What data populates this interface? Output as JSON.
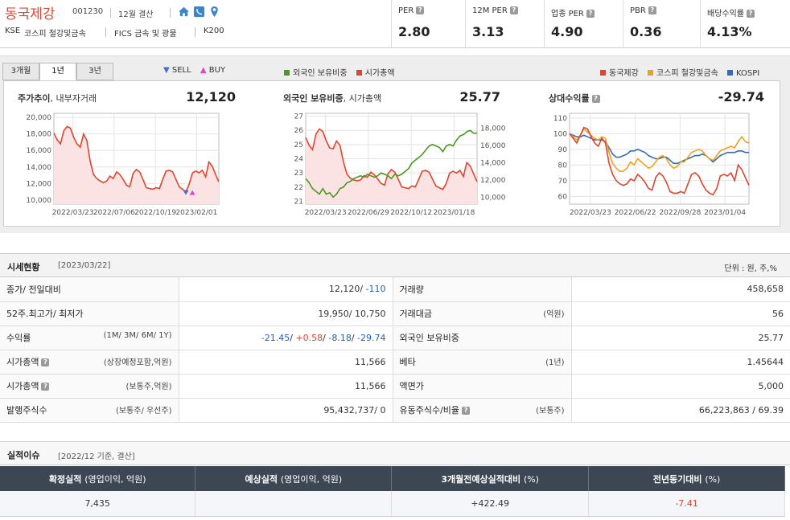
{
  "header": {
    "company_name": "동국제강",
    "code": "001230",
    "settlement": "12월 결산",
    "market": "KSE",
    "sector1": "코스피 철강및금속",
    "sector2": "FICS 금속 및 광물",
    "index": "K200",
    "icons": [
      "home-icon",
      "phone-icon",
      "location-icon"
    ]
  },
  "metrics": [
    {
      "label": "PER",
      "value": "2.80"
    },
    {
      "label": "12M PER",
      "value": "3.13"
    },
    {
      "label": "업종 PER",
      "value": "4.90"
    },
    {
      "label": "PBR",
      "value": "0.36"
    },
    {
      "label": "배당수익률",
      "value": "4.13%"
    }
  ],
  "tabs": [
    "3개월",
    "1년",
    "3년"
  ],
  "active_tab": "1년",
  "legends": {
    "trade": {
      "sell": "SELL",
      "buy": "BUY"
    },
    "foreign": [
      {
        "name": "외국인 보유비중",
        "color": "#4a9a1e"
      },
      {
        "name": "시가총액",
        "color": "#e0452e"
      }
    ],
    "relative": [
      {
        "name": "동국제강",
        "color": "#e0452e"
      },
      {
        "name": "코스피 철강및금속",
        "color": "#f0a11c"
      },
      {
        "name": "KOSPI",
        "color": "#2f6fb3"
      }
    ]
  },
  "colors": {
    "price": "#e0452e",
    "price_fill": "#fbe3e3",
    "foreign": "#4a9a1e",
    "steel": "#f0a11c",
    "kospi": "#2f6fb3",
    "sell": "#3f6fd0",
    "buy": "#d24fc2"
  },
  "chart_data": [
    {
      "type": "area",
      "title": "주가추이",
      "subtitle": "내부자거래",
      "headline": "12,120",
      "x_ticks": [
        "2022/03/23",
        "2022/07/06",
        "2022/10/19",
        "2023/02/01"
      ],
      "y_ticks": [
        "20,000",
        "18,000",
        "16,000",
        "14,000",
        "12,000",
        "10,000"
      ],
      "ylim": [
        9500,
        20500
      ],
      "series": [
        {
          "name": "주가",
          "values": [
            18100,
            17300,
            16800,
            18400,
            18900,
            18700,
            17600,
            16800,
            16400,
            18000,
            17200,
            14700,
            13100,
            12600,
            12300,
            12100,
            12300,
            12900,
            12600,
            13400,
            13100,
            12500,
            11800,
            11600,
            13200,
            13700,
            13400,
            12500,
            11500,
            11400,
            11300,
            11500,
            11400,
            12500,
            13500,
            13600,
            13400,
            12500,
            11600,
            11300,
            11000,
            11900,
            13300,
            13500,
            13300,
            13600,
            12800,
            14600,
            14100,
            13100,
            12200
          ]
        }
      ],
      "trades": [
        {
          "kind": "SELL",
          "date_index": 40,
          "price": 10900
        },
        {
          "kind": "BUY",
          "date_index": 42,
          "price": 10900
        }
      ],
      "grid": true
    },
    {
      "type": "line",
      "title": "외국인 보유비중",
      "subtitle": "시가총액",
      "headline": "25.77",
      "x_ticks": [
        "2022/03/23",
        "2022/06/29",
        "2022/10/12",
        "2023/01/18"
      ],
      "y_left_ticks": [
        "27",
        "26",
        "25",
        "24",
        "23",
        "22",
        "21"
      ],
      "y_right_ticks": [
        "18,000",
        "16,000",
        "14,000",
        "12,000",
        "10,000"
      ],
      "ylim_left": [
        20.8,
        27.2
      ],
      "ylim_right": [
        9200,
        19700
      ],
      "series": [
        {
          "name": "외국인 보유비중",
          "axis": "left",
          "values": [
            22.6,
            22.3,
            21.9,
            21.7,
            21.5,
            21.9,
            21.5,
            21.6,
            21.3,
            21.5,
            21.9,
            22.0,
            22.3,
            22.4,
            22.6,
            22.7,
            22.8,
            22.7,
            22.9,
            22.8,
            22.7,
            22.8,
            23.0,
            22.9,
            22.8,
            22.6,
            22.9,
            22.8,
            22.9,
            23.1,
            23.3,
            23.7,
            23.9,
            24.1,
            24.3,
            24.6,
            24.9,
            25.0,
            24.9,
            24.8,
            24.5,
            24.9,
            25.0,
            24.9,
            25.3,
            25.6,
            25.7,
            25.9,
            26.0,
            25.8,
            25.8
          ]
        },
        {
          "name": "시가총액",
          "axis": "right",
          "values": [
            16900,
            16000,
            15500,
            17300,
            17900,
            17600,
            16500,
            15700,
            15600,
            16500,
            16000,
            14100,
            12700,
            12200,
            12000,
            11900,
            12000,
            12500,
            12300,
            12900,
            12600,
            12100,
            11600,
            11400,
            12700,
            13200,
            12900,
            12100,
            11200,
            11100,
            11000,
            11300,
            11200,
            12100,
            13000,
            13100,
            12900,
            12100,
            11300,
            11100,
            10900,
            11600,
            12800,
            13000,
            12800,
            13100,
            12400,
            14000,
            13600,
            12700,
            11800
          ]
        }
      ],
      "grid": true
    },
    {
      "type": "line",
      "title": "상대수익률",
      "headline": "-29.74",
      "x_ticks": [
        "2022/03/23",
        "2022/06/22",
        "2022/09/28",
        "2023/01/04"
      ],
      "y_ticks": [
        "110",
        "100",
        "90",
        "80",
        "70",
        "60"
      ],
      "ylim": [
        55,
        113
      ],
      "series": [
        {
          "name": "동국제강",
          "values": [
            100,
            97,
            94,
            99,
            104,
            103,
            98,
            94,
            92,
            97,
            94,
            81,
            74,
            70,
            68,
            67,
            68,
            71,
            70,
            74,
            72,
            69,
            65,
            64,
            72,
            75,
            73,
            69,
            63,
            62,
            62,
            63,
            62,
            68,
            74,
            75,
            73,
            68,
            64,
            62,
            61,
            65,
            73,
            74,
            73,
            75,
            70,
            80,
            77,
            72,
            67
          ]
        },
        {
          "name": "코스피 철강및금속",
          "values": [
            100,
            98,
            96,
            99,
            103,
            101,
            99,
            97,
            96,
            98,
            97,
            88,
            81,
            78,
            76,
            76,
            78,
            82,
            80,
            84,
            82,
            80,
            78,
            79,
            82,
            85,
            86,
            84,
            80,
            78,
            79,
            82,
            82,
            85,
            88,
            89,
            90,
            89,
            86,
            84,
            83,
            86,
            89,
            90,
            91,
            92,
            91,
            95,
            98,
            95,
            94
          ]
        },
        {
          "name": "KOSPI",
          "values": [
            100,
            99,
            98,
            98,
            99,
            98,
            97,
            96,
            96,
            96,
            95,
            91,
            87,
            85,
            85,
            86,
            87,
            89,
            89,
            90,
            89,
            88,
            86,
            85,
            84,
            84,
            85,
            85,
            83,
            81,
            81,
            82,
            83,
            84,
            85,
            86,
            86,
            87,
            86,
            84,
            82,
            84,
            86,
            87,
            88,
            88,
            88,
            89,
            89,
            88,
            88
          ]
        }
      ],
      "grid": true
    }
  ],
  "status": {
    "title": "시세현황",
    "date": "[2023/03/22]",
    "unit": "단위 : 원, 주,%",
    "left": [
      {
        "label": "종가/ 전일대비",
        "sub": "",
        "parts": [
          {
            "t": "12,120/ ",
            "c": ""
          },
          {
            "t": "-110",
            "c": "neg"
          }
        ]
      },
      {
        "label": "52주.최고가/ 최저가",
        "sub": "",
        "parts": [
          {
            "t": "19,950/ 10,750",
            "c": ""
          }
        ]
      },
      {
        "label": "수익률",
        "sub": "(1M/ 3M/ 6M/ 1Y)",
        "parts": [
          {
            "t": "-21.45",
            "c": "neg"
          },
          {
            "t": "/ ",
            "c": ""
          },
          {
            "t": "+0.58",
            "c": "pos"
          },
          {
            "t": "/ ",
            "c": ""
          },
          {
            "t": "-8.18",
            "c": "neg"
          },
          {
            "t": "/ ",
            "c": ""
          },
          {
            "t": "-29.74",
            "c": "neg"
          }
        ]
      },
      {
        "label": "시가총액",
        "q": true,
        "sub": "(상장예정포함,억원)",
        "parts": [
          {
            "t": "11,566",
            "c": ""
          }
        ]
      },
      {
        "label": "시가총액",
        "q": true,
        "sub": "(보통주,억원)",
        "parts": [
          {
            "t": "11,566",
            "c": ""
          }
        ]
      },
      {
        "label": "발행주식수",
        "sub": "(보통주/ 우선주)",
        "parts": [
          {
            "t": "95,432,737/ 0",
            "c": ""
          }
        ]
      }
    ],
    "right": [
      {
        "label": "거래량",
        "sub": "",
        "value": "458,658"
      },
      {
        "label": "거래대금",
        "sub": "(억원)",
        "value": "56"
      },
      {
        "label": "외국인 보유비중",
        "sub": "",
        "value": "25.77"
      },
      {
        "label": "베타",
        "sub": "(1년)",
        "value": "1.45644"
      },
      {
        "label": "액면가",
        "sub": "",
        "value": "5,000"
      },
      {
        "label": "유동주식수/비율",
        "q": true,
        "sub": "(보통주)",
        "value": "66,223,863 / 69.39"
      }
    ]
  },
  "performance": {
    "title": "실적이슈",
    "basis": "[2022/12 기준, 결산]",
    "headers": [
      {
        "main": "확정실적",
        "sub": "(영업이익, 억원)"
      },
      {
        "main": "예상실적",
        "sub": "(영업이익, 억원)"
      },
      {
        "main": "3개월전예상실적대비",
        "sub": "(%)"
      },
      {
        "main": "전년동기대비",
        "sub": "(%)"
      }
    ],
    "values": [
      "7,435",
      "",
      "+422.49",
      "-7.41"
    ]
  }
}
